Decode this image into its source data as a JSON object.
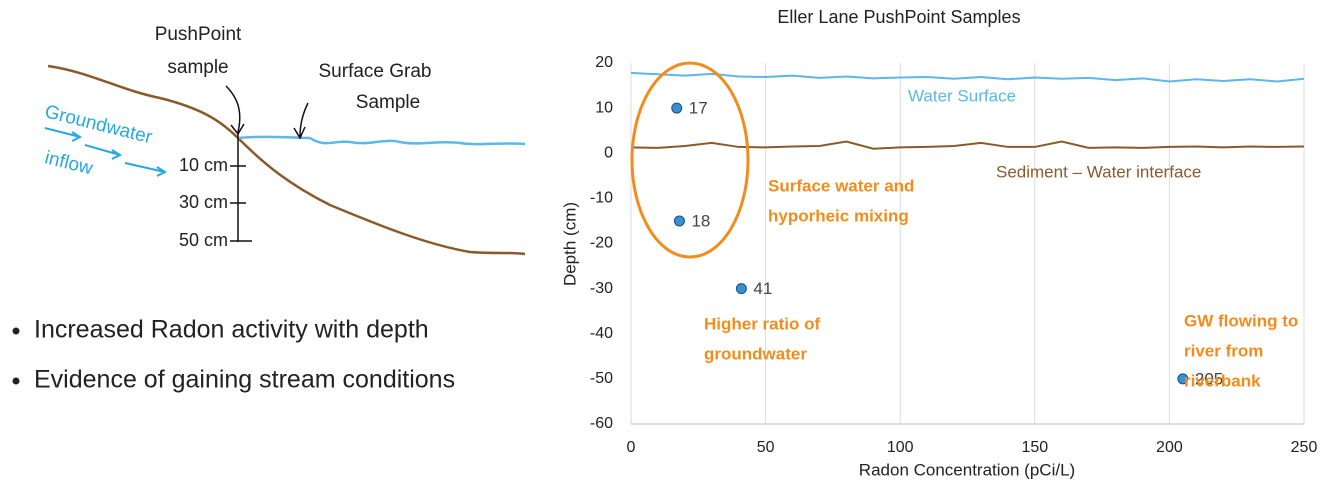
{
  "chart_data": {
    "type": "scatter",
    "title": "Eller Lane PushPoint Samples",
    "x_label": "Radon Concentration (pCi/L)",
    "y_label": "Depth (cm)",
    "x": [
      17,
      18,
      41,
      205
    ],
    "values": [
      10,
      -15,
      -30,
      -50
    ],
    "color": "#3a8fd6",
    "xlim": [
      0,
      250
    ],
    "xticks": [
      0,
      50,
      100,
      150,
      200,
      250
    ],
    "ylim": [
      -60,
      20
    ],
    "yticks": [
      -60,
      -50,
      -40,
      -30,
      -20,
      -10,
      0,
      10,
      20
    ],
    "grid": true,
    "lines": [
      {
        "name": "Water Surface",
        "color": "#5bb8e8",
        "x": [
          0,
          10,
          20,
          30,
          40,
          50,
          60,
          70,
          80,
          90,
          100,
          110,
          120,
          130,
          140,
          150,
          160,
          170,
          180,
          190,
          200,
          210,
          220,
          230,
          240,
          250
        ],
        "values": [
          17.8,
          17.5,
          17.2,
          17.6,
          17.0,
          16.9,
          17.2,
          16.7,
          17.0,
          16.6,
          16.8,
          16.9,
          16.5,
          16.9,
          16.4,
          16.8,
          16.5,
          16.7,
          16.2,
          16.6,
          15.9,
          16.4,
          16.0,
          16.4,
          15.9,
          16.5
        ]
      },
      {
        "name": "Sediment – Water interface",
        "color": "#8b5a2b",
        "x": [
          0,
          10,
          20,
          30,
          40,
          50,
          60,
          70,
          80,
          90,
          100,
          110,
          120,
          130,
          140,
          150,
          160,
          170,
          180,
          190,
          200,
          210,
          220,
          230,
          240,
          250
        ],
        "values": [
          1.3,
          1.2,
          1.6,
          2.3,
          1.4,
          1.3,
          1.5,
          1.6,
          2.6,
          1.0,
          1.3,
          1.4,
          1.6,
          2.3,
          1.4,
          1.4,
          2.6,
          1.2,
          1.3,
          1.2,
          1.4,
          1.5,
          1.3,
          1.5,
          1.4,
          1.5
        ]
      }
    ],
    "annotations": [
      [
        "Surface water and",
        "hyporheic mixing"
      ],
      [
        "Higher ratio of",
        "groundwater"
      ],
      [
        "GW flowing to",
        "river from",
        "riverbank"
      ]
    ],
    "annotation_color": "#f28c1c"
  },
  "diagram": {
    "pushpoint_label": [
      "PushPoint",
      "sample"
    ],
    "grab_label": [
      "Surface Grab",
      "Sample"
    ],
    "groundwater_label": [
      "Groundwater",
      "inflow"
    ],
    "depth_labels": [
      "10 cm",
      "30 cm",
      "50 cm"
    ]
  },
  "bullets": [
    "Increased Radon activity with depth",
    "Evidence of gaining stream conditions"
  ]
}
